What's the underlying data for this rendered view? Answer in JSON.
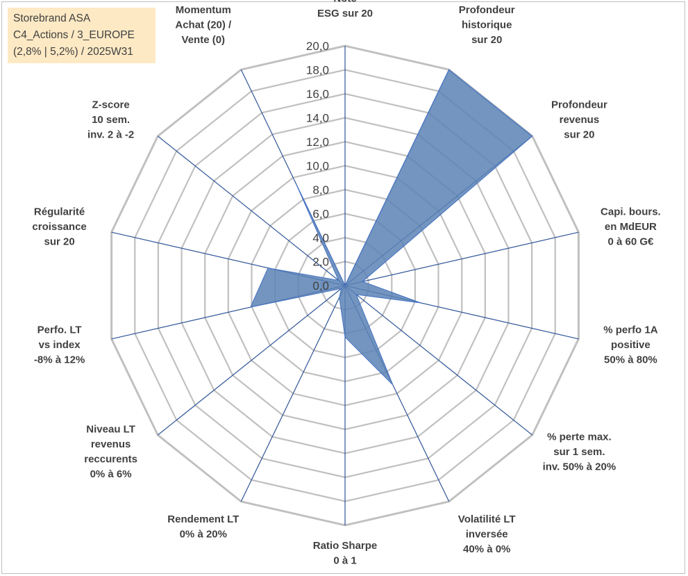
{
  "info_box": {
    "line1": "Storebrand ASA",
    "line2": "C4_Actions / 3_EUROPE",
    "line3": "(2,8% | 5,2%) / 2025W31"
  },
  "colors": {
    "grid_ring": "#c0c0c0",
    "spoke": "#2f5597",
    "fill": "#5b82b5",
    "fill_stroke": "#4472c4",
    "label": "#404040",
    "box_bg": "#fde9c4"
  },
  "chart_data": {
    "type": "radar",
    "rmax": 20,
    "tick_step": 2,
    "ticks": [
      "0,0",
      "2,0",
      "4,0",
      "6,0",
      "8,0",
      "10,0",
      "12,0",
      "14,0",
      "16,0",
      "18,0",
      "20,0"
    ],
    "axes": [
      {
        "label": [
          "Note",
          "ESG sur 20"
        ],
        "value": 0
      },
      {
        "label": [
          "Profondeur",
          "historique",
          "sur 20"
        ],
        "value": 20
      },
      {
        "label": [
          "Profondeur",
          "revenus",
          "sur 20"
        ],
        "value": 20
      },
      {
        "label": [
          "Capi. bours.",
          "en MdEUR",
          "0 à 60 G€"
        ],
        "value": 1.5
      },
      {
        "label": [
          "% perfo 1A",
          "positive",
          "50% à 80%"
        ],
        "value": 6.5
      },
      {
        "label": [
          "% perte max.",
          "sur 1 sem.",
          "inv. 50% à 20%"
        ],
        "value": 1.2
      },
      {
        "label": [
          "Volatilité LT",
          "inversée",
          "40% à 0%"
        ],
        "value": 9.2
      },
      {
        "label": [
          "Ratio Sharpe",
          "0 à 1"
        ],
        "value": 4.3
      },
      {
        "label": [
          "Rendement LT",
          "0% à 20%"
        ],
        "value": 1.1
      },
      {
        "label": [
          "Niveau LT",
          "revenus",
          "reccurents",
          "0% à 6%"
        ],
        "value": 0.4
      },
      {
        "label": [
          "Perfo. LT",
          "vs index",
          "-8% à 12%"
        ],
        "value": 8.1
      },
      {
        "label": [
          "Régularité",
          "croissance",
          "sur 20"
        ],
        "value": 6.6
      },
      {
        "label": [
          "Z-score",
          "10 sem.",
          "inv. 2 à -2"
        ],
        "value": 5.5
      },
      {
        "label": [
          "Z-score",
          "10 sem.",
          "inv. 2 à -2"
        ],
        "value": 0.7
      },
      {
        "label": [
          "Momentum",
          "Achat (20) /",
          "Vente (0)"
        ],
        "value": 9.4
      }
    ]
  }
}
